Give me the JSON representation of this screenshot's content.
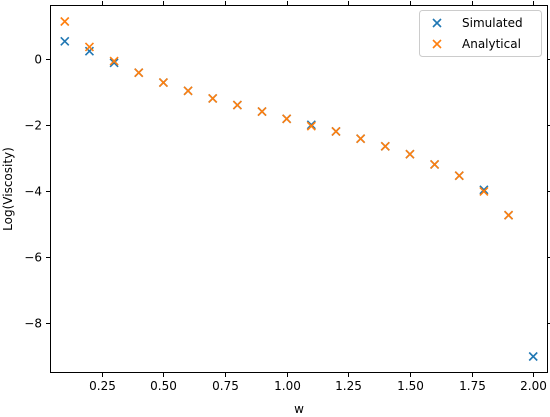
{
  "chart_data": {
    "type": "scatter",
    "title": "",
    "xlabel": "w",
    "ylabel": "Log(Viscosity)",
    "xlim": [
      0.04,
      2.06
    ],
    "ylim": [
      -9.5,
      1.65
    ],
    "xticks": [
      0.25,
      0.5,
      0.75,
      1.0,
      1.25,
      1.5,
      1.75,
      2.0
    ],
    "xtick_labels": [
      "0.25",
      "0.50",
      "0.75",
      "1.00",
      "1.25",
      "1.50",
      "1.75",
      "2.00"
    ],
    "yticks": [
      0,
      -2,
      -4,
      -6,
      -8
    ],
    "ytick_labels": [
      "0",
      "−2",
      "−4",
      "−6",
      "−8"
    ],
    "grid": false,
    "legend_position": "top-right",
    "marker": "x",
    "series": [
      {
        "name": "Simulated",
        "color": "#1f77b4",
        "x": [
          0.1,
          0.2,
          0.3,
          0.4,
          0.5,
          0.6,
          0.7,
          0.8,
          0.9,
          1.0,
          1.1,
          1.2,
          1.3,
          1.4,
          1.5,
          1.6,
          1.7,
          1.8,
          1.9,
          2.0
        ],
        "y": [
          0.55,
          0.25,
          -0.1,
          -0.4,
          -0.7,
          -0.95,
          -1.18,
          -1.38,
          -1.58,
          -1.8,
          -1.98,
          -2.18,
          -2.4,
          -2.63,
          -2.87,
          -3.18,
          -3.52,
          -3.95,
          -4.72,
          -9.0
        ]
      },
      {
        "name": "Analytical",
        "color": "#ff7f0e",
        "x": [
          0.1,
          0.2,
          0.3,
          0.4,
          0.5,
          0.6,
          0.7,
          0.8,
          0.9,
          1.0,
          1.1,
          1.2,
          1.3,
          1.4,
          1.5,
          1.6,
          1.7,
          1.8,
          1.9
        ],
        "y": [
          1.15,
          0.38,
          -0.05,
          -0.4,
          -0.7,
          -0.95,
          -1.18,
          -1.38,
          -1.58,
          -1.8,
          -2.02,
          -2.18,
          -2.4,
          -2.63,
          -2.87,
          -3.18,
          -3.52,
          -4.0,
          -4.72
        ]
      }
    ]
  }
}
